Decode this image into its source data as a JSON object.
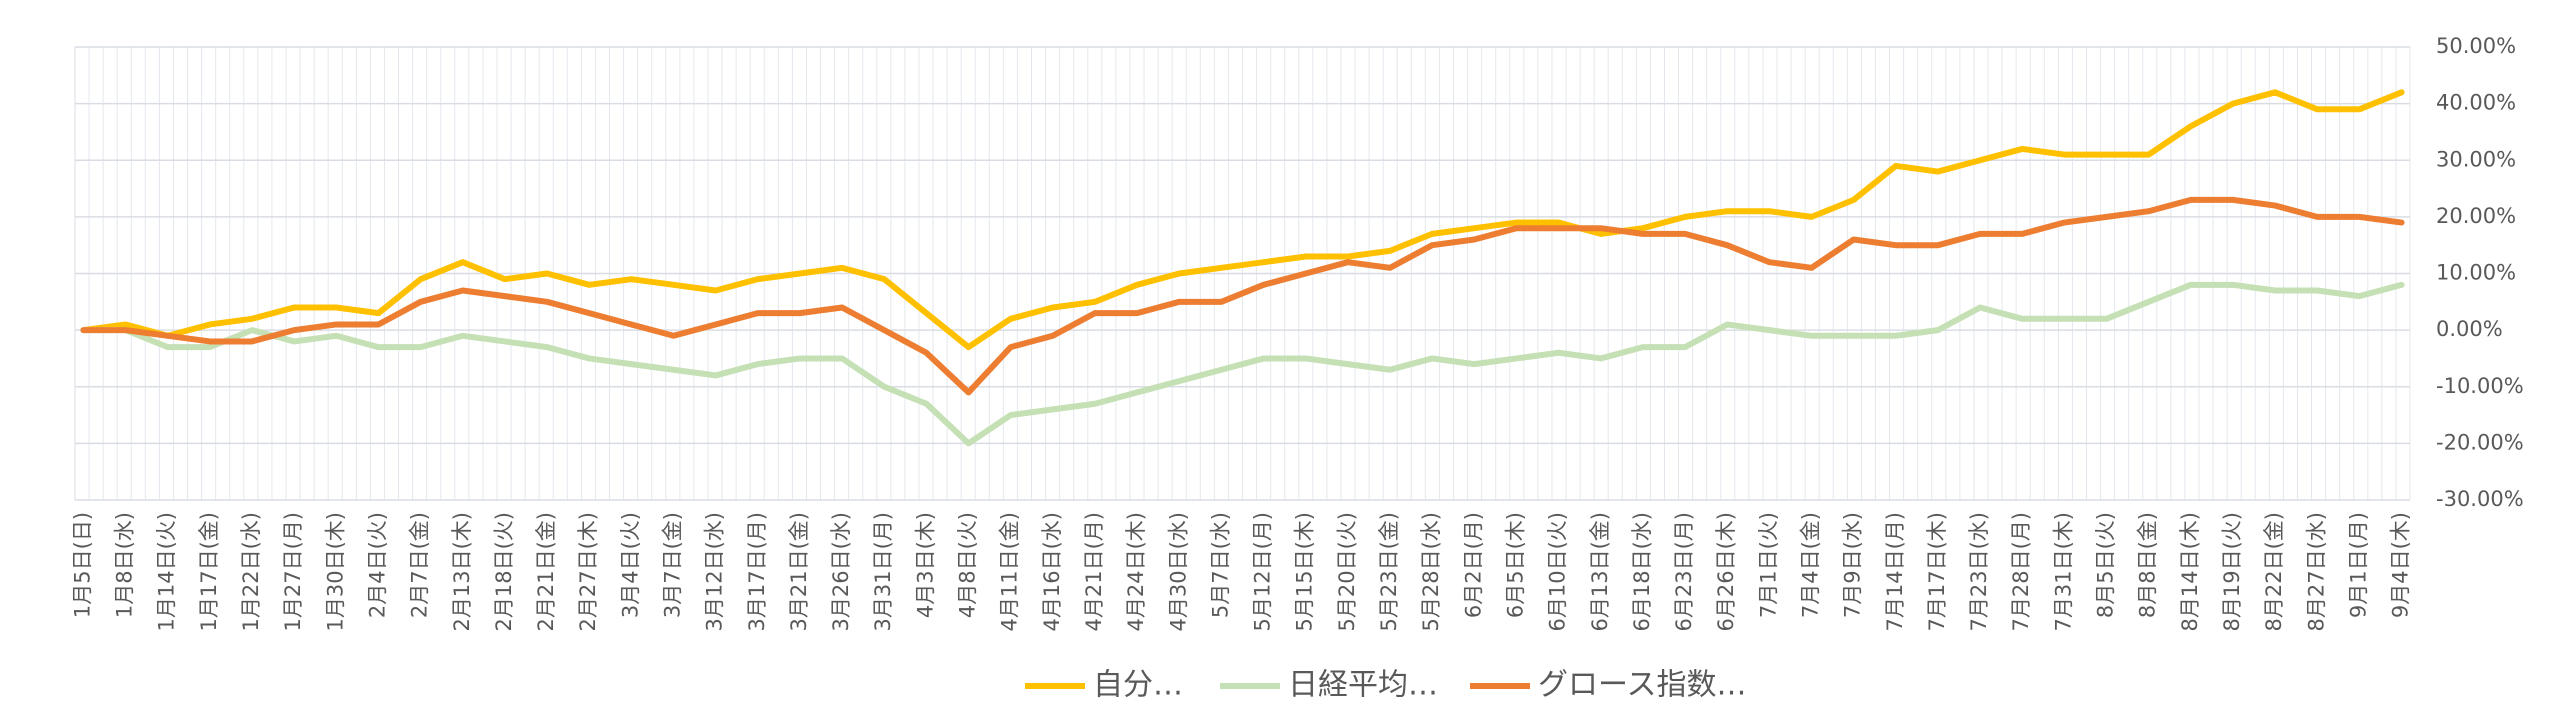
{
  "chart_data": {
    "type": "line",
    "categories": [
      "1月5日(日)",
      "1月8日(水)",
      "1月14日(火)",
      "1月17日(金)",
      "1月22日(水)",
      "1月27日(月)",
      "1月30日(木)",
      "2月4日(火)",
      "2月7日(金)",
      "2月13日(木)",
      "2月18日(火)",
      "2月21日(金)",
      "2月27日(木)",
      "3月4日(火)",
      "3月7日(金)",
      "3月12日(水)",
      "3月17日(月)",
      "3月21日(金)",
      "3月26日(水)",
      "3月31日(月)",
      "4月3日(木)",
      "4月8日(火)",
      "4月11日(金)",
      "4月16日(水)",
      "4月21日(月)",
      "4月24日(木)",
      "4月30日(水)",
      "5月7日(水)",
      "5月12日(月)",
      "5月15日(木)",
      "5月20日(火)",
      "5月23日(金)",
      "5月28日(水)",
      "6月2日(月)",
      "6月5日(木)",
      "6月10日(火)",
      "6月13日(金)",
      "6月18日(水)",
      "6月23日(月)",
      "6月26日(木)",
      "7月1日(火)",
      "7月4日(金)",
      "7月9日(水)",
      "7月14日(月)",
      "7月17日(木)",
      "7月23日(水)",
      "7月28日(月)",
      "7月31日(木)",
      "8月5日(火)",
      "8月8日(金)",
      "8月14日(木)",
      "8月19日(火)",
      "8月22日(金)",
      "8月27日(水)",
      "9月1日(月)",
      "9月4日(木)"
    ],
    "series": [
      {
        "name": "自分…",
        "color": "#FFC000",
        "values": [
          0,
          1,
          -1,
          1,
          2,
          4,
          4,
          3,
          9,
          12,
          9,
          10,
          8,
          9,
          8,
          7,
          9,
          10,
          11,
          9,
          3,
          -3,
          2,
          4,
          5,
          8,
          10,
          11,
          12,
          13,
          13,
          14,
          17,
          18,
          19,
          19,
          17,
          18,
          20,
          21,
          21,
          20,
          23,
          29,
          28,
          30,
          32,
          31,
          31,
          31,
          36,
          40,
          42,
          39,
          39,
          42
        ]
      },
      {
        "name": "日経平均…",
        "color": "#C5E0B4",
        "values": [
          0,
          0,
          -3,
          -3,
          0,
          -2,
          -1,
          -3,
          -3,
          -1,
          -2,
          -3,
          -5,
          -6,
          -7,
          -8,
          -6,
          -5,
          -5,
          -10,
          -13,
          -20,
          -15,
          -14,
          -13,
          -11,
          -9,
          -7,
          -5,
          -5,
          -6,
          -7,
          -5,
          -6,
          -5,
          -4,
          -5,
          -3,
          -3,
          1,
          0,
          -1,
          -1,
          -1,
          0,
          4,
          2,
          2,
          2,
          5,
          8,
          8,
          7,
          7,
          6,
          8
        ]
      },
      {
        "name": "グロース指数…",
        "color": "#ED7D31",
        "values": [
          0,
          0,
          -1,
          -2,
          -2,
          0,
          1,
          1,
          5,
          7,
          6,
          5,
          3,
          1,
          -1,
          1,
          3,
          3,
          4,
          0,
          -4,
          -11,
          -3,
          -1,
          3,
          3,
          5,
          5,
          8,
          10,
          12,
          11,
          15,
          16,
          18,
          18,
          18,
          17,
          17,
          15,
          12,
          11,
          16,
          15,
          15,
          17,
          17,
          19,
          20,
          21,
          23,
          23,
          22,
          20,
          20,
          19
        ]
      }
    ],
    "ylim": [
      -30,
      50
    ],
    "yticks": [
      {
        "value": -30,
        "label": "-30.00%"
      },
      {
        "value": -20,
        "label": "-20.00%"
      },
      {
        "value": -10,
        "label": "-10.00%"
      },
      {
        "value": 0,
        "label": "0.00%"
      },
      {
        "value": 10,
        "label": "10.00%"
      },
      {
        "value": 20,
        "label": "20.00%"
      },
      {
        "value": 30,
        "label": "30.00%"
      },
      {
        "value": 40,
        "label": "40.00%"
      },
      {
        "value": 50,
        "label": "50.00%"
      }
    ],
    "grid": true
  }
}
